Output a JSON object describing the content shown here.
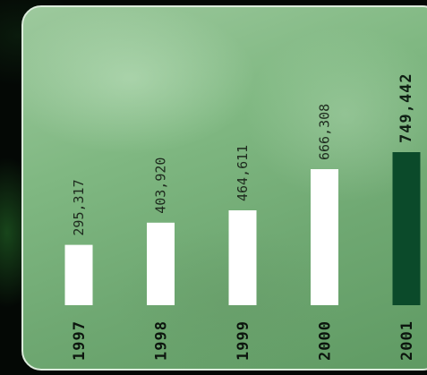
{
  "chart_data": {
    "type": "bar",
    "categories": [
      "1997",
      "1998",
      "1999",
      "2000",
      "2001"
    ],
    "values": [
      295317,
      403920,
      464611,
      666308,
      749442
    ],
    "value_labels": [
      "295,317",
      "403,920",
      "464,611",
      "666,308",
      "749,442"
    ],
    "highlight_index": 4,
    "title": "",
    "xlabel": "",
    "ylabel": "",
    "ylim": [
      0,
      749442
    ],
    "grid": false,
    "colors": {
      "bar": "#ffffff",
      "bar_highlight": "#0b4a2a",
      "panel": "#7db57f"
    }
  }
}
